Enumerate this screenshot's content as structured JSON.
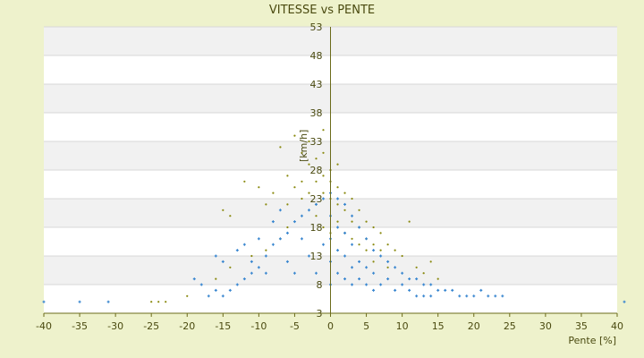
{
  "chart_data": {
    "type": "scatter",
    "title": "VITESSE vs PENTE",
    "xlabel": "Pente [%]",
    "ylabel": "[km/h]",
    "xlim": [
      -40,
      40
    ],
    "ylim": [
      3,
      53
    ],
    "xticks": [
      -40,
      -35,
      -30,
      -25,
      -20,
      -15,
      -10,
      -5,
      0,
      5,
      10,
      15,
      20,
      25,
      30,
      35,
      40
    ],
    "yticks": [
      3,
      8,
      13,
      18,
      23,
      28,
      33,
      38,
      43,
      48,
      53
    ],
    "grid": "horizontal alternating bands",
    "series": [
      {
        "color": "#8A8A10",
        "marker": "small dot",
        "values": [
          [
            -7,
            32
          ],
          [
            -5,
            34
          ],
          [
            -4,
            31
          ],
          [
            -3,
            29
          ],
          [
            -3,
            33
          ],
          [
            -2,
            30
          ],
          [
            -1,
            35
          ],
          [
            -1,
            31
          ],
          [
            0,
            28
          ],
          [
            1,
            29
          ],
          [
            -12,
            26
          ],
          [
            -15,
            21
          ],
          [
            -14,
            20
          ],
          [
            -10,
            25
          ],
          [
            -9,
            22
          ],
          [
            -8,
            24
          ],
          [
            -6,
            27
          ],
          [
            -6,
            22
          ],
          [
            -5,
            25
          ],
          [
            -4,
            26
          ],
          [
            -4,
            23
          ],
          [
            -3,
            24
          ],
          [
            -2,
            26
          ],
          [
            -2,
            22
          ],
          [
            -1,
            27
          ],
          [
            -1,
            24
          ],
          [
            0,
            26
          ],
          [
            0,
            23
          ],
          [
            1,
            25
          ],
          [
            1,
            22
          ],
          [
            2,
            24
          ],
          [
            2,
            21
          ],
          [
            3,
            23
          ],
          [
            3,
            19
          ],
          [
            4,
            21
          ],
          [
            4,
            18
          ],
          [
            5,
            19
          ],
          [
            5,
            16
          ],
          [
            6,
            18
          ],
          [
            6,
            15
          ],
          [
            7,
            17
          ],
          [
            7,
            14
          ],
          [
            8,
            15
          ],
          [
            9,
            14
          ],
          [
            10,
            13
          ],
          [
            11,
            19
          ],
          [
            12,
            11
          ],
          [
            13,
            10
          ],
          [
            14,
            12
          ],
          [
            15,
            9
          ],
          [
            -24,
            5
          ],
          [
            -23,
            5
          ],
          [
            -25,
            5
          ],
          [
            -20,
            6
          ],
          [
            -16,
            9
          ],
          [
            -14,
            11
          ],
          [
            -11,
            13
          ],
          [
            -9,
            14
          ],
          [
            -7,
            16
          ],
          [
            -6,
            18
          ],
          [
            -2,
            20
          ],
          [
            -1,
            18
          ],
          [
            0,
            17
          ],
          [
            1,
            19
          ],
          [
            2,
            17
          ],
          [
            3,
            16
          ],
          [
            4,
            15
          ],
          [
            5,
            14
          ],
          [
            6,
            12
          ],
          [
            8,
            11
          ]
        ]
      },
      {
        "color": "#3A87D0",
        "marker": "small cross",
        "values": [
          [
            -35,
            5
          ],
          [
            -31,
            5
          ],
          [
            -40,
            5
          ],
          [
            41,
            5
          ],
          [
            -18,
            8
          ],
          [
            -19,
            9
          ],
          [
            -16,
            7
          ],
          [
            -17,
            6
          ],
          [
            -15,
            6
          ],
          [
            -14,
            7
          ],
          [
            -13,
            8
          ],
          [
            -12,
            9
          ],
          [
            -11,
            10
          ],
          [
            -10,
            11
          ],
          [
            -9,
            13
          ],
          [
            -8,
            15
          ],
          [
            -7,
            16
          ],
          [
            -6,
            17
          ],
          [
            -5,
            19
          ],
          [
            -4,
            20
          ],
          [
            -3,
            21
          ],
          [
            -2,
            22
          ],
          [
            -1,
            23
          ],
          [
            0,
            24
          ],
          [
            1,
            23
          ],
          [
            2,
            22
          ],
          [
            3,
            20
          ],
          [
            4,
            18
          ],
          [
            5,
            16
          ],
          [
            6,
            14
          ],
          [
            7,
            13
          ],
          [
            8,
            12
          ],
          [
            9,
            11
          ],
          [
            10,
            10
          ],
          [
            11,
            9
          ],
          [
            12,
            9
          ],
          [
            13,
            8
          ],
          [
            14,
            8
          ],
          [
            15,
            7
          ],
          [
            16,
            7
          ],
          [
            17,
            7
          ],
          [
            18,
            6
          ],
          [
            19,
            6
          ],
          [
            20,
            6
          ],
          [
            21,
            7
          ],
          [
            22,
            6
          ],
          [
            23,
            6
          ],
          [
            24,
            6
          ],
          [
            -15,
            12
          ],
          [
            -16,
            13
          ],
          [
            -13,
            14
          ],
          [
            -12,
            15
          ],
          [
            -11,
            12
          ],
          [
            -10,
            16
          ],
          [
            -9,
            10
          ],
          [
            -8,
            19
          ],
          [
            -7,
            21
          ],
          [
            -6,
            12
          ],
          [
            -5,
            10
          ],
          [
            -4,
            16
          ],
          [
            -3,
            13
          ],
          [
            -2,
            10
          ],
          [
            -1,
            15
          ],
          [
            0,
            8
          ],
          [
            0,
            12
          ],
          [
            0,
            16
          ],
          [
            0,
            20
          ],
          [
            1,
            10
          ],
          [
            1,
            14
          ],
          [
            1,
            18
          ],
          [
            2,
            9
          ],
          [
            2,
            13
          ],
          [
            2,
            17
          ],
          [
            3,
            8
          ],
          [
            3,
            11
          ],
          [
            3,
            15
          ],
          [
            4,
            9
          ],
          [
            4,
            12
          ],
          [
            5,
            8
          ],
          [
            5,
            11
          ],
          [
            6,
            7
          ],
          [
            6,
            10
          ],
          [
            7,
            8
          ],
          [
            8,
            9
          ],
          [
            9,
            7
          ],
          [
            10,
            8
          ],
          [
            11,
            7
          ],
          [
            12,
            6
          ],
          [
            13,
            6
          ],
          [
            14,
            6
          ]
        ]
      }
    ]
  }
}
